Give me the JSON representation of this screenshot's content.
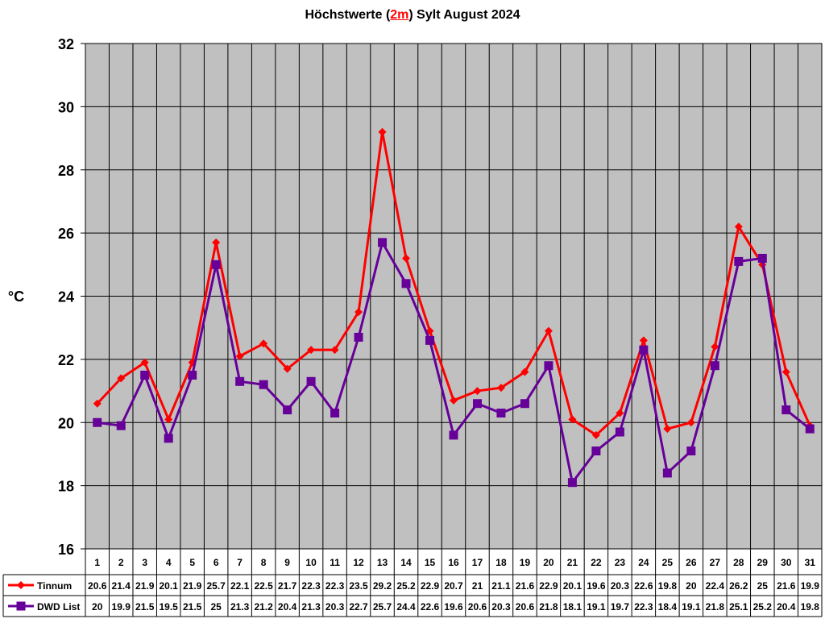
{
  "chart_data": {
    "type": "line",
    "title_prefix": "Höchstwerte (",
    "title_highlight": "2m",
    "title_suffix": ") Sylt August 2024",
    "ylabel": "°C",
    "xlabel": "",
    "ylim": [
      16,
      32
    ],
    "yticks": [
      16,
      18,
      20,
      22,
      24,
      26,
      28,
      30,
      32
    ],
    "grid": true,
    "legend": "table-below",
    "x": [
      1,
      2,
      3,
      4,
      5,
      6,
      7,
      8,
      9,
      10,
      11,
      12,
      13,
      14,
      15,
      16,
      17,
      18,
      19,
      20,
      21,
      22,
      23,
      24,
      25,
      26,
      27,
      28,
      29,
      30,
      31
    ],
    "series": [
      {
        "name": "Tinnum",
        "color": "#ff0000",
        "marker": "diamond",
        "values": [
          20.6,
          21.4,
          21.9,
          20.1,
          21.9,
          25.7,
          22.1,
          22.5,
          21.7,
          22.3,
          22.3,
          23.5,
          29.2,
          25.2,
          22.9,
          20.7,
          21,
          21.1,
          21.6,
          22.9,
          20.1,
          19.6,
          20.3,
          22.6,
          19.8,
          20,
          22.4,
          26.2,
          25,
          21.6,
          19.9
        ]
      },
      {
        "name": "DWD List",
        "color": "#660099",
        "marker": "square",
        "values": [
          20,
          19.9,
          21.5,
          19.5,
          21.5,
          25,
          21.3,
          21.2,
          20.4,
          21.3,
          20.3,
          22.7,
          25.7,
          24.4,
          22.6,
          19.6,
          20.6,
          20.3,
          20.6,
          21.8,
          18.1,
          19.1,
          19.7,
          22.3,
          18.4,
          19.1,
          21.8,
          25.1,
          25.2,
          20.4,
          19.8
        ]
      }
    ]
  },
  "colors": {
    "plot_background": "#c0c0c0",
    "grid": "#000000",
    "title_highlight": "#ff0000"
  }
}
